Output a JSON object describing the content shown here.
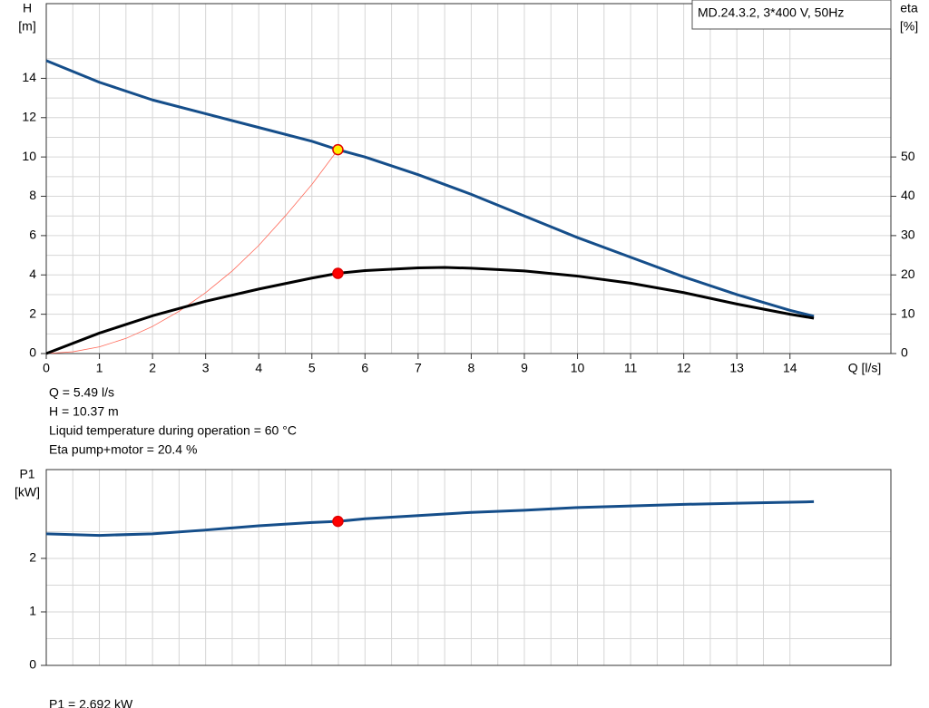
{
  "chart_data": [
    {
      "type": "line",
      "label": "MD.24.3.2, 3*400 V, 50Hz",
      "y_label": [
        "H",
        "[m]"
      ],
      "y2_label": [
        "eta",
        "[%]"
      ],
      "x_label": "Q [l/s]",
      "xlim": [
        0,
        15.9
      ],
      "xticks": [
        0,
        1,
        2,
        3,
        4,
        5,
        6,
        7,
        8,
        9,
        10,
        11,
        12,
        13,
        14
      ],
      "ylim": [
        0,
        17.8
      ],
      "yticks": [
        0,
        2,
        4,
        6,
        8,
        10,
        12,
        14
      ],
      "y2lim": [
        0,
        89
      ],
      "y2ticks": [
        0,
        10,
        20,
        30,
        40,
        50
      ],
      "grid": true,
      "series": [
        {
          "color": "#ff6a5a",
          "width": 0.8,
          "axis": "y",
          "x": [
            0,
            0.5,
            1,
            1.5,
            2,
            2.5,
            3,
            3.5,
            4,
            4.5,
            5,
            5.49
          ],
          "values": [
            0,
            0.09,
            0.34,
            0.77,
            1.38,
            2.15,
            3.1,
            4.2,
            5.5,
            7.0,
            8.6,
            10.37
          ]
        },
        {
          "color": "#154e8a",
          "width": 3,
          "axis": "y",
          "x": [
            0,
            1,
            2,
            3,
            4,
            5,
            5.49,
            6,
            7,
            8,
            9,
            10,
            11,
            12,
            13,
            14,
            14.45
          ],
          "values": [
            14.9,
            13.8,
            12.9,
            12.2,
            11.5,
            10.8,
            10.37,
            10.0,
            9.1,
            8.1,
            7.0,
            5.9,
            4.9,
            3.9,
            3.0,
            2.2,
            1.9
          ]
        },
        {
          "color": "#000000",
          "width": 3,
          "axis": "y2",
          "x": [
            0,
            1,
            2,
            3,
            4,
            5,
            5.49,
            6,
            7,
            7.5,
            8,
            9,
            10,
            11,
            12,
            13,
            14,
            14.45
          ],
          "values": [
            0,
            5.2,
            9.6,
            13.3,
            16.4,
            19.2,
            20.4,
            21.1,
            21.8,
            21.9,
            21.7,
            21.0,
            19.7,
            17.9,
            15.5,
            12.6,
            10.0,
            9.0
          ]
        }
      ],
      "points": [
        {
          "x": 5.49,
          "value": 10.37,
          "axis": "y",
          "color": "#ffee00",
          "edge": "#e00000"
        },
        {
          "x": 5.49,
          "value": 20.4,
          "axis": "y2",
          "color": "#ff0000",
          "edge": "#e00000"
        }
      ],
      "annotations": [
        "Q = 5.49 l/s",
        "H = 10.37 m",
        "Liquid temperature during operation = 60 °C",
        "Eta pump+motor = 20.4 %"
      ]
    },
    {
      "type": "line",
      "y_label": [
        "P1",
        "[kW]"
      ],
      "ylim": [
        0,
        3.66
      ],
      "yticks": [
        0,
        1,
        2
      ],
      "grid": true,
      "series": [
        {
          "color": "#154e8a",
          "width": 3,
          "axis": "y",
          "x": [
            0,
            1,
            2,
            3,
            4,
            5,
            5.49,
            6,
            7,
            8,
            9,
            10,
            11,
            12,
            13,
            14,
            14.45
          ],
          "values": [
            2.46,
            2.43,
            2.46,
            2.53,
            2.61,
            2.67,
            2.692,
            2.74,
            2.8,
            2.86,
            2.9,
            2.95,
            2.98,
            3.01,
            3.03,
            3.05,
            3.06
          ]
        }
      ],
      "points": [
        {
          "x": 5.49,
          "value": 2.692,
          "axis": "y",
          "color": "#ff0000",
          "edge": "#e00000"
        }
      ],
      "annotations": [
        "P1 = 2.692 kW"
      ]
    }
  ]
}
